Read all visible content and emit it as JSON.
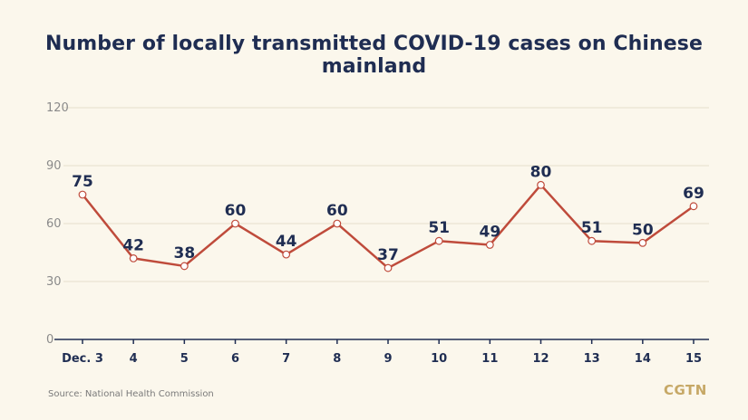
{
  "chart_data": {
    "type": "line",
    "title": "Number of locally transmitted COVID-19 cases on Chinese mainland",
    "categories": [
      "Dec. 3",
      "4",
      "5",
      "6",
      "7",
      "8",
      "9",
      "10",
      "11",
      "12",
      "13",
      "14",
      "15"
    ],
    "values": [
      75,
      42,
      38,
      60,
      44,
      60,
      37,
      51,
      49,
      80,
      51,
      50,
      69
    ],
    "yticks": [
      0,
      30,
      60,
      90,
      120
    ],
    "ylim": [
      0,
      120
    ],
    "xlabel": "",
    "ylabel": "",
    "grid": true,
    "line_color": "#bf4b3b",
    "label_color": "#1f2d52"
  },
  "source": "Source: National Health Commission",
  "logo": "CGTN"
}
